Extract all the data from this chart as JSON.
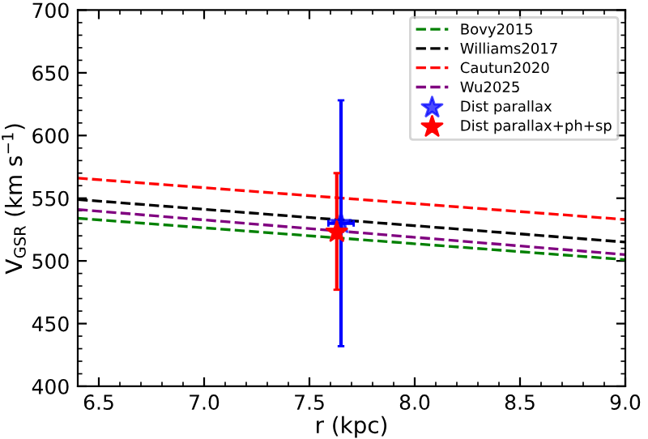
{
  "chart_data": {
    "type": "line",
    "xlabel": "r (kpc)",
    "ylabel": "V$_{GSR}$ (km s$^{−1}$)",
    "xlim": [
      6.4,
      9.0
    ],
    "ylim": [
      400,
      700
    ],
    "xticks": [
      6.5,
      {
        "value": 7,
        "label": "7.0"
      },
      7.5,
      {
        "value": 8,
        "label": "8.0"
      },
      8.5,
      {
        "value": 9,
        "label": "9.0"
      }
    ],
    "yticks": [
      400,
      450,
      500,
      550,
      600,
      650,
      700
    ],
    "grid": false,
    "legend": "top right",
    "line_style": "dashed",
    "series": [
      {
        "name": "Bovy2015",
        "color": "#008000",
        "x": [
          6.4,
          9.0
        ],
        "values": [
          534,
          501
        ]
      },
      {
        "name": "Williams2017",
        "color": "#000000",
        "x": [
          6.4,
          9.0
        ],
        "values": [
          549,
          515
        ]
      },
      {
        "name": "Cautun2020",
        "color": "#ff0000",
        "x": [
          6.4,
          9.0
        ],
        "values": [
          566,
          533
        ]
      },
      {
        "name": "Wu2025",
        "color": "#800080",
        "x": [
          6.4,
          9.0
        ],
        "values": [
          541,
          505
        ]
      },
      {
        "name": "Dist parallax",
        "type": "scatter",
        "marker": "star",
        "color": "#0000ff",
        "x": [
          7.65
        ],
        "values": [
          530
        ],
        "errors": [
          98
        ],
        "xerrors": [
          0.06
        ]
      },
      {
        "name": "Dist parallax+ph+sp",
        "type": "scatter",
        "marker": "star",
        "color": "#ff0000",
        "x": [
          7.63
        ],
        "values": [
          523
        ],
        "errors": [
          [
            477,
            570
          ]
        ]
      }
    ]
  }
}
